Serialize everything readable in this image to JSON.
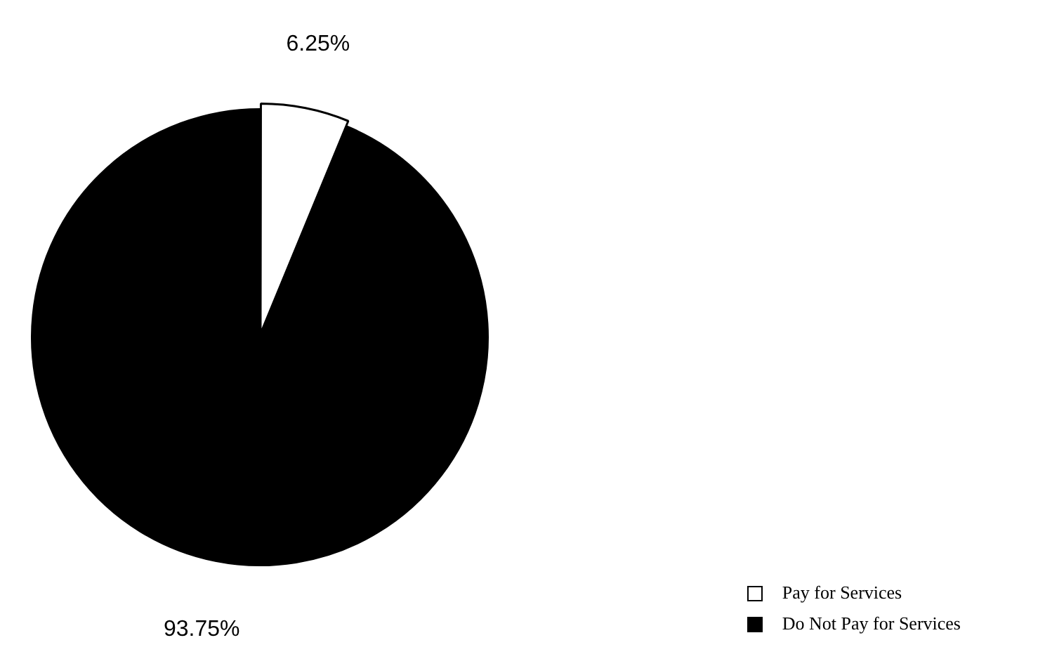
{
  "chart_data": {
    "type": "pie",
    "categories": [
      "Pay for Services",
      "Do Not Pay for Services"
    ],
    "values": [
      6.25,
      93.75
    ],
    "colors": [
      "#ffffff",
      "#000000"
    ],
    "value_labels": [
      "6.25%",
      "93.75%"
    ],
    "legend": "bottom right"
  }
}
